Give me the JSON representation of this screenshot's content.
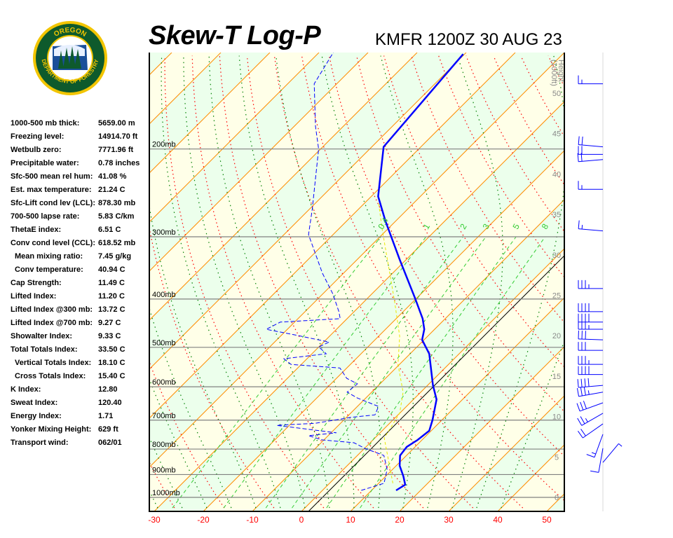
{
  "header": {
    "title": "Skew-T Log-P",
    "station": "KMFR 1200Z 30 AUG 23"
  },
  "logo": {
    "top_text": "OREGON",
    "bottom_text": "DEPARTMENT OF FORESTRY",
    "colors": {
      "ring": "#f2c500",
      "field": "#0e5a2c"
    }
  },
  "stats": [
    {
      "label": "1000-500 mb thick:",
      "value": "5659.00 m",
      "indent": false
    },
    {
      "label": "Freezing level:",
      "value": "14914.70 ft",
      "indent": false
    },
    {
      "label": "Wetbulb zero:",
      "value": "7771.96 ft",
      "indent": false
    },
    {
      "label": "Precipitable water:",
      "value": "0.78 inches",
      "indent": false
    },
    {
      "label": "Sfc-500 mean rel hum:",
      "value": "41.08 %",
      "indent": false
    },
    {
      "label": "Est. max temperature:",
      "value": "21.24 C",
      "indent": false
    },
    {
      "label": "Sfc-Lift cond lev (LCL):",
      "value": "878.30 mb",
      "indent": false
    },
    {
      "label": "700-500 lapse rate:",
      "value": "5.83 C/km",
      "indent": false
    },
    {
      "label": "ThetaE index:",
      "value": "6.51 C",
      "indent": false
    },
    {
      "label": "Conv cond level (CCL):",
      "value": "618.52 mb",
      "indent": false
    },
    {
      "label": "Mean mixing ratio:",
      "value": "7.45 g/kg",
      "indent": true
    },
    {
      "label": "Conv temperature:",
      "value": "40.94 C",
      "indent": true
    },
    {
      "label": "Cap Strength:",
      "value": "11.49 C",
      "indent": false
    },
    {
      "label": "Lifted Index:",
      "value": "11.20 C",
      "indent": false
    },
    {
      "label": "Lifted Index @300 mb:",
      "value": "13.72 C",
      "indent": false
    },
    {
      "label": "Lifted Index @700 mb:",
      "value": "9.27 C",
      "indent": false
    },
    {
      "label": "Showalter Index:",
      "value": "9.33 C",
      "indent": false
    },
    {
      "label": "Total Totals Index:",
      "value": "33.50 C",
      "indent": false
    },
    {
      "label": "Vertical Totals Index:",
      "value": "18.10 C",
      "indent": true
    },
    {
      "label": "Cross Totals Index:",
      "value": "15.40 C",
      "indent": true
    },
    {
      "label": "K Index:",
      "value": "12.80",
      "indent": false
    },
    {
      "label": "Sweat Index:",
      "value": "120.40",
      "indent": false
    },
    {
      "label": "Energy Index:",
      "value": "1.71",
      "indent": false
    },
    {
      "label": "Yonker Mixing Height:",
      "value": "629 ft",
      "indent": false
    },
    {
      "label": "Transport wind:",
      "value": "062/01",
      "indent": false
    }
  ],
  "chart_data": {
    "type": "skew-t",
    "title": "Skew-T Log-P",
    "ylim_mb": [
      1000,
      128
    ],
    "xlim_c": [
      -30,
      50
    ],
    "pressure_levels": [
      1000,
      900,
      800,
      700,
      600,
      500,
      400,
      300,
      200
    ],
    "pressure_labels": [
      "1000mb",
      "900mb",
      "800mb",
      "700mb",
      "600mb",
      "500mb",
      "400mb",
      "300mb",
      "200mb"
    ],
    "temperature_ticks": [
      -30,
      -20,
      -10,
      0,
      10,
      20,
      30,
      40,
      50
    ],
    "height_axis_label": [
      "Height",
      "(1000ft)"
    ],
    "height_ticks": [
      0,
      5,
      10,
      15,
      20,
      25,
      30,
      35,
      40,
      45,
      50
    ],
    "mixing_ratio_labels": [
      "0.4",
      "1",
      "2",
      "3",
      "5",
      "8"
    ],
    "colors": {
      "temperature": "#0000ff",
      "dewpoint": "#0000ff",
      "parcel": "#e8e800",
      "isotherm": "#ff8c00",
      "dry_adiabat": "#ff0000",
      "moist_adiabat": "#008000",
      "mixing_ratio": "#33cc33",
      "band_a": "#ffffe8",
      "band_b": "#ecffec",
      "tick_labels": "#ff0000"
    },
    "temperature_profile": [
      [
        968,
        15.0
      ],
      [
        943,
        15.7
      ],
      [
        907,
        13.6
      ],
      [
        864,
        10.7
      ],
      [
        824,
        8.7
      ],
      [
        792,
        8.3
      ],
      [
        767,
        9.1
      ],
      [
        735,
        9.6
      ],
      [
        700,
        8.1
      ],
      [
        636,
        4.7
      ],
      [
        596,
        1.1
      ],
      [
        515,
        -6.1
      ],
      [
        483,
        -10.4
      ],
      [
        460,
        -12.1
      ],
      [
        438,
        -14.6
      ],
      [
        398,
        -20.4
      ],
      [
        333,
        -31.4
      ],
      [
        279,
        -42.1
      ],
      [
        249,
        -48.6
      ],
      [
        198,
        -57.6
      ],
      [
        129,
        -60.3
      ]
    ],
    "dewpoint_profile": [
      [
        968,
        7.9
      ],
      [
        937,
        11.1
      ],
      [
        879,
        8.9
      ],
      [
        824,
        5.4
      ],
      [
        797,
        0.0
      ],
      [
        777,
        -3.3
      ],
      [
        767,
        -10.3
      ],
      [
        752,
        -14.0
      ],
      [
        742,
        -8.9
      ],
      [
        717,
        -22.6
      ],
      [
        710,
        -15.1
      ],
      [
        691,
        -9.1
      ],
      [
        683,
        -4.7
      ],
      [
        657,
        -5.7
      ],
      [
        632,
        -11.7
      ],
      [
        615,
        -15.0
      ],
      [
        592,
        -14.6
      ],
      [
        577,
        -17.9
      ],
      [
        550,
        -21.4
      ],
      [
        541,
        -32.1
      ],
      [
        527,
        -34.7
      ],
      [
        515,
        -27.1
      ],
      [
        499,
        -30.0
      ],
      [
        488,
        -28.9
      ],
      [
        472,
        -37.4
      ],
      [
        460,
        -44.3
      ],
      [
        445,
        -42.9
      ],
      [
        438,
        -31.4
      ],
      [
        424,
        -33.1
      ],
      [
        391,
        -37.9
      ],
      [
        355,
        -44.3
      ],
      [
        297,
        -55.0
      ],
      [
        265,
        -59.3
      ],
      [
        200,
        -70.4
      ],
      [
        180,
        -75.7
      ],
      [
        148,
        -84.6
      ],
      [
        128,
        -87.1
      ]
    ],
    "parcel_profile": [
      [
        937,
        12.9
      ],
      [
        760,
        1.9
      ],
      [
        678,
        0.0
      ],
      [
        615,
        -3.6
      ],
      [
        541,
        -10.3
      ],
      [
        475,
        -15.7
      ],
      [
        404,
        -23.9
      ],
      [
        292,
        -40.7
      ],
      [
        257,
        -47.1
      ]
    ],
    "winds_kt": [
      [
        148,
        270,
        15
      ],
      [
        198,
        275,
        20
      ],
      [
        205,
        270,
        20
      ],
      [
        210,
        265,
        20
      ],
      [
        241,
        270,
        15
      ],
      [
        292,
        275,
        15
      ],
      [
        381,
        270,
        35
      ],
      [
        424,
        270,
        40
      ],
      [
        445,
        270,
        40
      ],
      [
        460,
        270,
        35
      ],
      [
        483,
        272,
        30
      ],
      [
        507,
        270,
        30
      ],
      [
        541,
        270,
        35
      ],
      [
        567,
        270,
        40
      ],
      [
        596,
        265,
        40
      ],
      [
        615,
        260,
        35
      ],
      [
        646,
        250,
        30
      ],
      [
        678,
        240,
        25
      ],
      [
        712,
        235,
        20
      ],
      [
        747,
        200,
        15
      ],
      [
        797,
        190,
        10
      ],
      [
        851,
        40,
        5
      ]
    ]
  }
}
